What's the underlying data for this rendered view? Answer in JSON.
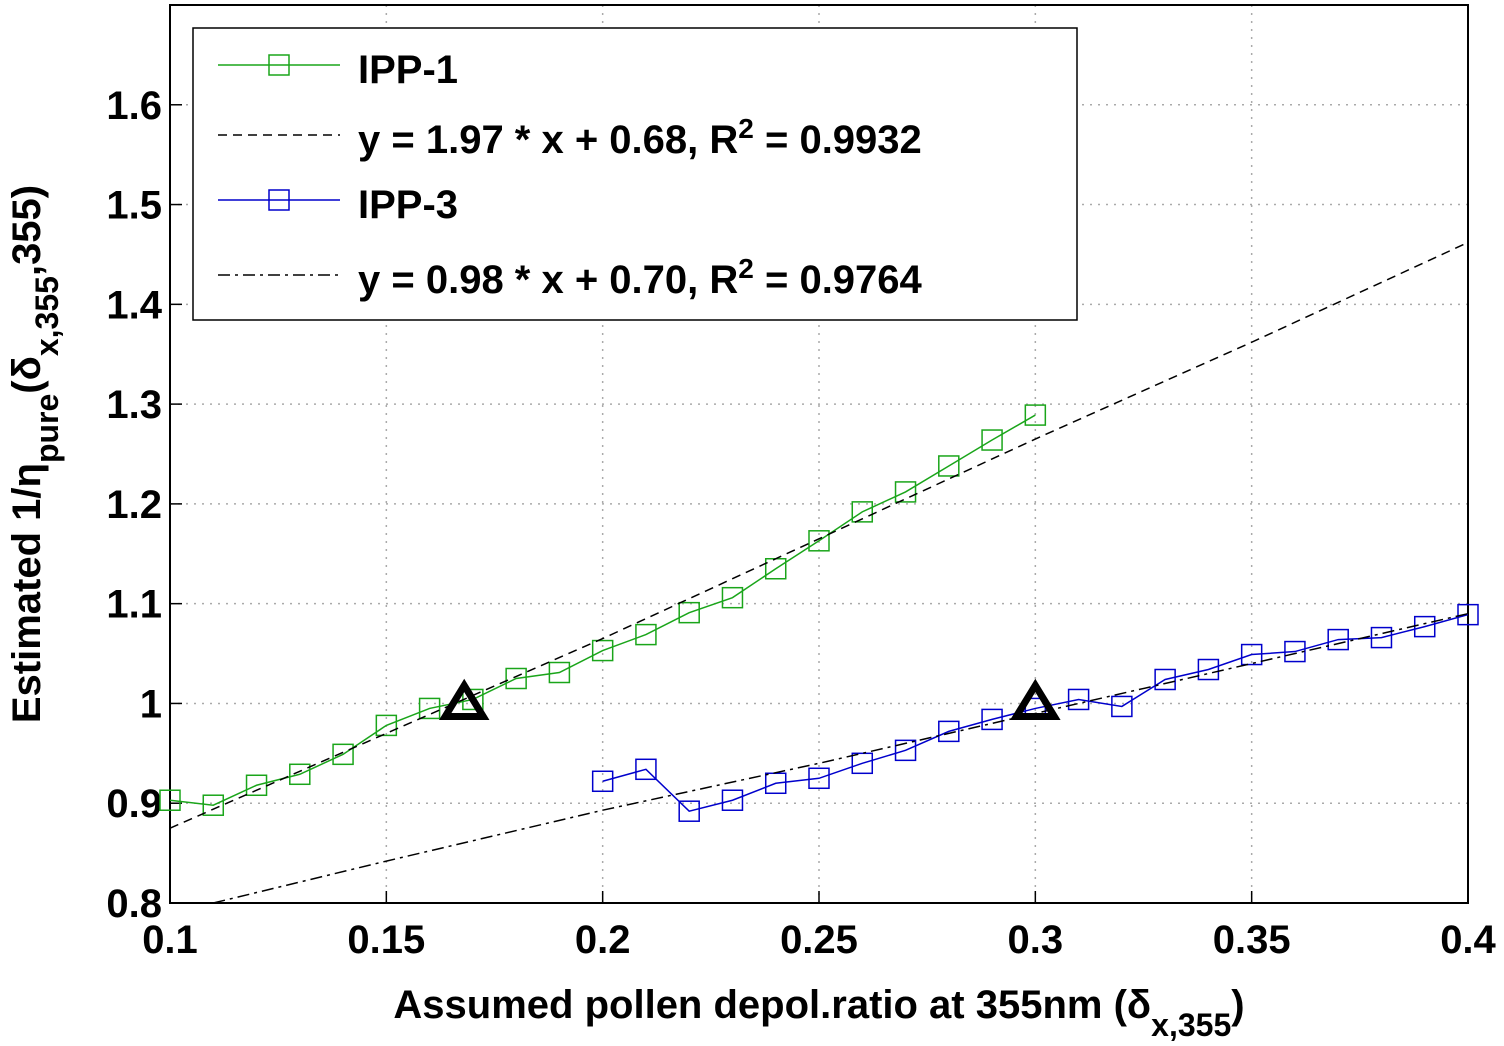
{
  "chart_data": {
    "type": "line",
    "x_label": [
      {
        "text": "Assumed pollen depol.ratio at 355nm (δ"
      },
      {
        "text": "x,355",
        "sub": true
      },
      {
        "text": ")"
      }
    ],
    "y_label": [
      {
        "text": "Estimated 1/η"
      },
      {
        "text": "pure",
        "sub": true
      },
      {
        "text": "(δ"
      },
      {
        "text": "x,355",
        "sub": true
      },
      {
        "text": ",355)"
      }
    ],
    "xlim": [
      0.1,
      0.4
    ],
    "ylim": [
      0.8,
      1.7
    ],
    "xticks": [
      0.1,
      0.15,
      0.2,
      0.25,
      0.3,
      0.35,
      0.4
    ],
    "yticks": [
      0.8,
      0.9,
      1,
      1.1,
      1.2,
      1.3,
      1.4,
      1.5,
      1.6
    ],
    "grid": true,
    "legend": "upper left",
    "series": [
      {
        "name": "IPP-1",
        "color": "#1aa51a",
        "marker": "square",
        "dash": "solid",
        "x": [
          0.1,
          0.11,
          0.12,
          0.13,
          0.14,
          0.15,
          0.16,
          0.17,
          0.18,
          0.19,
          0.2,
          0.21,
          0.22,
          0.23,
          0.24,
          0.25,
          0.26,
          0.27,
          0.28,
          0.29,
          0.3
        ],
        "values": [
          0.903,
          0.898,
          0.918,
          0.929,
          0.949,
          0.978,
          0.995,
          1.004,
          1.025,
          1.031,
          1.053,
          1.069,
          1.091,
          1.106,
          1.135,
          1.163,
          1.192,
          1.212,
          1.238,
          1.264,
          1.289
        ]
      },
      {
        "name": "y = 1.97 * x + 0.68, R",
        "name_sup": "2",
        "name_tail": " = 0.9932",
        "color": "#000000",
        "dash": "dashed",
        "x": [
          0.1,
          0.15,
          0.2,
          0.25,
          0.3,
          0.35,
          0.4
        ],
        "values": [
          0.875,
          0.97,
          1.065,
          1.165,
          1.265,
          1.362,
          1.462
        ]
      },
      {
        "name": "IPP-3",
        "color": "#0000cc",
        "marker": "square",
        "dash": "solid",
        "x": [
          0.2,
          0.21,
          0.22,
          0.23,
          0.24,
          0.25,
          0.26,
          0.27,
          0.28,
          0.29,
          0.3,
          0.31,
          0.32,
          0.33,
          0.34,
          0.35,
          0.36,
          0.37,
          0.38,
          0.39,
          0.4
        ],
        "values": [
          0.922,
          0.934,
          0.892,
          0.903,
          0.92,
          0.925,
          0.94,
          0.953,
          0.972,
          0.984,
          0.995,
          1.004,
          0.997,
          1.024,
          1.034,
          1.049,
          1.052,
          1.064,
          1.066,
          1.077,
          1.089
        ]
      },
      {
        "name": "y = 0.98 * x + 0.70, R",
        "name_sup": "2",
        "name_tail": " = 0.9764",
        "color": "#000000",
        "dash": "dashdot",
        "x": [
          0.11,
          0.15,
          0.2,
          0.25,
          0.3,
          0.35,
          0.4
        ],
        "values": [
          0.8,
          0.842,
          0.893,
          0.94,
          0.99,
          1.04,
          1.09
        ]
      }
    ],
    "points": {
      "color": "#000000",
      "marker": "triangle",
      "x": [
        0.168,
        0.3
      ],
      "values": [
        1,
        1
      ]
    }
  }
}
